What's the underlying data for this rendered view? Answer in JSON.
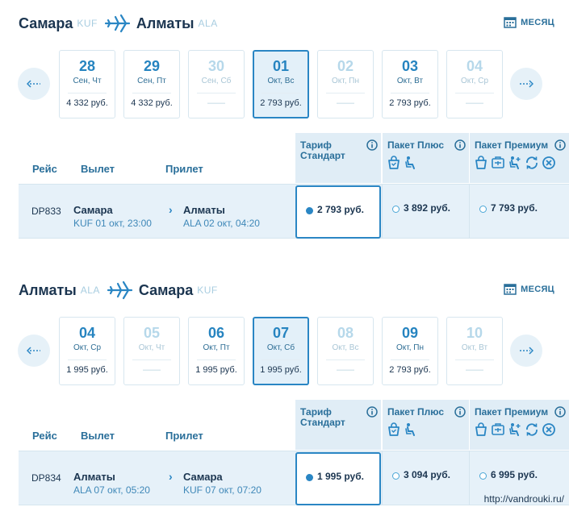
{
  "colors": {
    "accent": "#2a86c4",
    "dark": "#1b3550",
    "light_bg": "#e6f1f9"
  },
  "icons": {
    "plane": "plane-icon",
    "calendar": "calendar-icon",
    "prev": "arrow-left-icon",
    "next": "arrow-right-icon",
    "info": "info-icon",
    "baggage": "bag-icon",
    "seat": "seat-icon",
    "refund": "refund-icon",
    "cancel": "cancel-icon",
    "meal": "meal-icon"
  },
  "month_label": "МЕСЯЦ",
  "table_headers": {
    "flight": "Рейс",
    "departure": "Вылет",
    "arrival": "Прилет"
  },
  "tariffs": {
    "standard_line1": "Тариф",
    "standard_line2": "Стандарт",
    "plus": "Пакет Плюс",
    "premium": "Пакет Премиум"
  },
  "outbound": {
    "from_city": "Самара",
    "from_code": "KUF",
    "to_city": "Алматы",
    "to_code": "ALA",
    "days": [
      {
        "num": "28",
        "wd": "Сен, Чт",
        "price": "4 332 руб.",
        "state": "normal"
      },
      {
        "num": "29",
        "wd": "Сен, Пт",
        "price": "4 332 руб.",
        "state": "normal"
      },
      {
        "num": "30",
        "wd": "Сен, Сб",
        "price": "——",
        "state": "dim"
      },
      {
        "num": "01",
        "wd": "Окт, Вс",
        "price": "2 793 руб.",
        "state": "active"
      },
      {
        "num": "02",
        "wd": "Окт, Пн",
        "price": "——",
        "state": "dim"
      },
      {
        "num": "03",
        "wd": "Окт, Вт",
        "price": "2 793 руб.",
        "state": "normal"
      },
      {
        "num": "04",
        "wd": "Окт, Ср",
        "price": "——",
        "state": "dim"
      }
    ],
    "flight": {
      "number": "DP833",
      "dep_city": "Самара",
      "dep_time": "KUF 01 окт, 23:00",
      "arr_city": "Алматы",
      "arr_time": "ALA 02 окт, 04:20",
      "price_standard": "2 793 руб.",
      "price_plus": "3 892 руб.",
      "price_premium": "7 793 руб."
    }
  },
  "inbound": {
    "from_city": "Алматы",
    "from_code": "ALA",
    "to_city": "Самара",
    "to_code": "KUF",
    "days": [
      {
        "num": "04",
        "wd": "Окт, Ср",
        "price": "1 995 руб.",
        "state": "normal"
      },
      {
        "num": "05",
        "wd": "Окт, Чт",
        "price": "——",
        "state": "dim"
      },
      {
        "num": "06",
        "wd": "Окт, Пт",
        "price": "1 995 руб.",
        "state": "normal"
      },
      {
        "num": "07",
        "wd": "Окт, Сб",
        "price": "1 995 руб.",
        "state": "active"
      },
      {
        "num": "08",
        "wd": "Окт, Вс",
        "price": "——",
        "state": "dim"
      },
      {
        "num": "09",
        "wd": "Окт, Пн",
        "price": "2 793 руб.",
        "state": "normal"
      },
      {
        "num": "10",
        "wd": "Окт, Вт",
        "price": "——",
        "state": "dim"
      }
    ],
    "flight": {
      "number": "DP834",
      "dep_city": "Алматы",
      "dep_time": "ALA 07 окт, 05:20",
      "arr_city": "Самара",
      "arr_time": "KUF 07 окт, 07:20",
      "price_standard": "1 995 руб.",
      "price_plus": "3 094 руб.",
      "price_premium": "6 995 руб."
    }
  },
  "watermark": "http://vandrouki.ru/"
}
